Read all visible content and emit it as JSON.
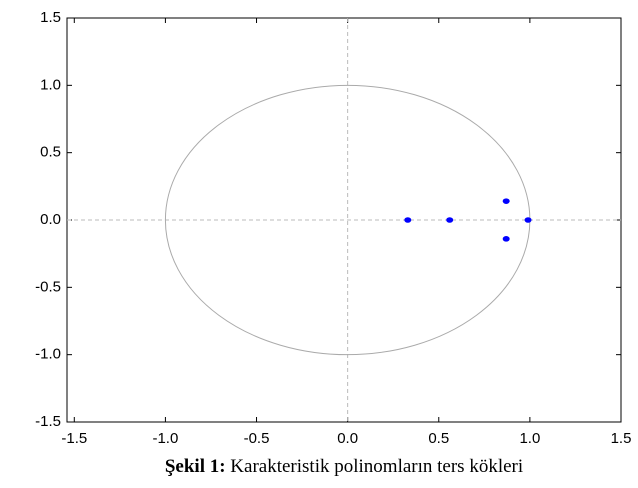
{
  "chart_data": {
    "type": "scatter",
    "caption_label": "Şekil 1:",
    "title": "Karakteristik polinomların ters kökleri",
    "series": [
      {
        "x": [
          0.33,
          0.56,
          0.87,
          0.87,
          0.99
        ],
        "values": [
          0,
          0,
          0.14,
          -0.14,
          0
        ],
        "color": "#0000ff"
      }
    ],
    "xlim": [
      -1.54,
      1.5
    ],
    "xticks": [
      -1.5,
      {
        "value": -1,
        "label": "-1.0"
      },
      -0.5,
      {
        "value": 0,
        "label": "0.0"
      },
      0.5,
      {
        "value": 1,
        "label": "1.0"
      },
      1.5
    ],
    "ylim": [
      -1.5,
      1.5
    ],
    "yticks": [
      -1.5,
      {
        "value": -1,
        "label": "-1.0"
      },
      -0.5,
      {
        "value": 0,
        "label": "0.0"
      },
      0.5,
      {
        "value": 1,
        "label": "1.0"
      },
      1.5
    ],
    "reference_circle_radius": 1,
    "zero_lines": true
  }
}
